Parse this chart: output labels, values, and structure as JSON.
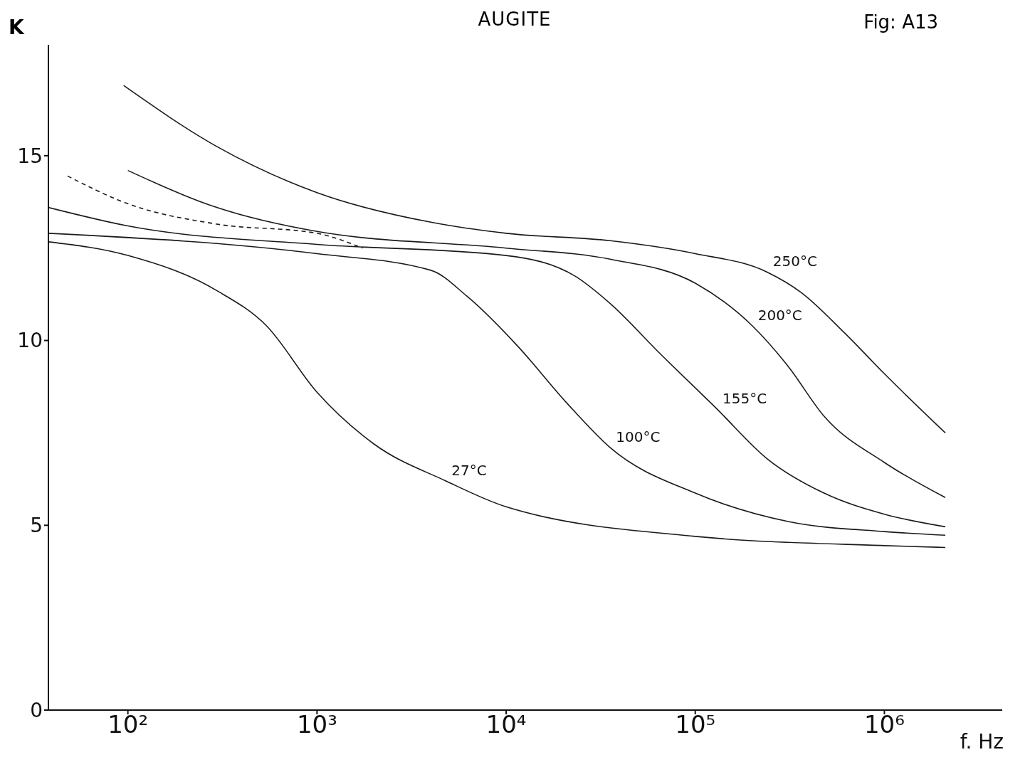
{
  "chart_data": {
    "type": "line",
    "title": "AUGITE",
    "xlabel": "f. Hz",
    "ylabel": "K",
    "log": "x",
    "marker": "none",
    "annotations": [
      "Fig: A13"
    ],
    "xlim": [
      38,
      4200000
    ],
    "xticks": [
      {
        "value": 100,
        "label": "10²"
      },
      {
        "value": 1000,
        "label": "10³"
      },
      {
        "value": 10000,
        "label": "10⁴"
      },
      {
        "value": 100000,
        "label": "10⁵"
      },
      {
        "value": 1000000,
        "label": "10⁶"
      }
    ],
    "ylim": [
      0,
      18
    ],
    "yticks": [
      0,
      5,
      10,
      15
    ],
    "series": [
      {
        "name": "250°C",
        "color": "#1a1a1a",
        "line_style": "solid",
        "x": [
          95,
          295,
          1000,
          4000,
          10000,
          35500,
          100000,
          240000,
          363000,
          617000,
          1000000,
          2100000
        ],
        "values": [
          16.9,
          15.25,
          14.0,
          13.2,
          12.9,
          12.7,
          12.35,
          11.85,
          11.3,
          10.2,
          9.1,
          7.5
        ]
      },
      {
        "name": "200°C",
        "color": "#1a1a1a",
        "line_style": "solid",
        "x": [
          100,
          295,
          1000,
          10000,
          35500,
          100000,
          200000,
          310000,
          480000,
          1000000,
          2100000
        ],
        "values": [
          14.6,
          13.6,
          12.95,
          12.5,
          12.2,
          11.55,
          10.4,
          9.3,
          7.95,
          6.7,
          5.75
        ]
      },
      {
        "color": "#1a1a1a",
        "line_style": "dashed",
        "x": [
          48,
          100,
          295,
          1000,
          1740
        ],
        "values": [
          14.45,
          13.7,
          13.15,
          12.9,
          12.5
        ]
      },
      {
        "name": "155°C",
        "color": "#1a1a1a",
        "line_style": "solid",
        "x": [
          38,
          100,
          1000,
          10000,
          23000,
          35500,
          65000,
          130000,
          240000,
          480000,
          1000000,
          2100000
        ],
        "values": [
          13.6,
          13.1,
          12.6,
          12.3,
          11.75,
          11.0,
          9.65,
          8.15,
          6.8,
          5.87,
          5.3,
          4.96
        ]
      },
      {
        "name": "100°C",
        "color": "#1a1a1a",
        "line_style": "solid",
        "x": [
          38,
          1000,
          4000,
          6200,
          11500,
          21000,
          35500,
          100000,
          310000,
          1000000,
          2100000
        ],
        "values": [
          12.9,
          12.35,
          11.9,
          11.2,
          9.85,
          8.3,
          7.1,
          5.87,
          5.1,
          4.83,
          4.73
        ]
      },
      {
        "name": "27°C",
        "color": "#1a1a1a",
        "line_style": "solid",
        "x": [
          38,
          100,
          295,
          540,
          1000,
          2000,
          4800,
          10000,
          100000,
          1000000,
          2100000
        ],
        "values": [
          12.67,
          12.3,
          11.35,
          10.4,
          8.6,
          7.2,
          6.2,
          5.5,
          4.7,
          4.45,
          4.4
        ]
      }
    ]
  }
}
